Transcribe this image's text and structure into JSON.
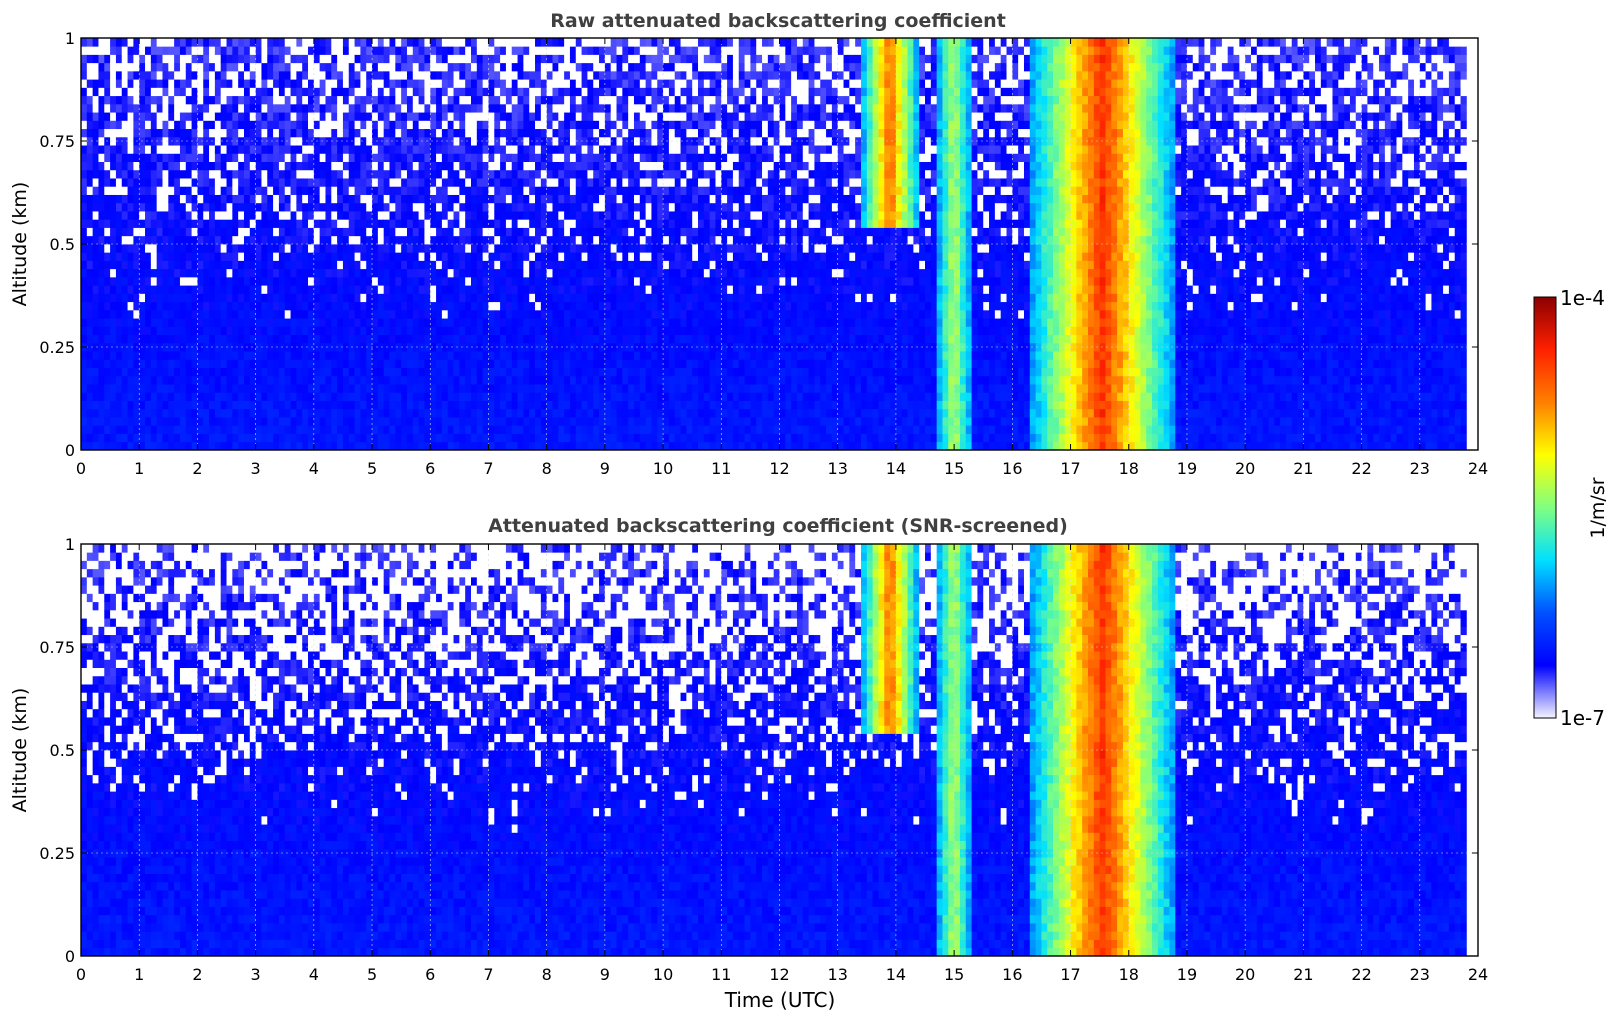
{
  "chart_data": [
    {
      "type": "heatmap",
      "title": "Raw attenuated backscattering coefficient",
      "xlabel": "",
      "ylabel": "Altitude (km)",
      "xlim": [
        0,
        24
      ],
      "ylim": [
        0,
        1
      ],
      "xticks": [
        "0",
        "1",
        "2",
        "3",
        "4",
        "5",
        "6",
        "7",
        "8",
        "9",
        "10",
        "11",
        "12",
        "13",
        "14",
        "15",
        "16",
        "17",
        "18",
        "19",
        "20",
        "21",
        "22",
        "23",
        "24"
      ],
      "yticks": [
        "0",
        "0.25",
        "0.5",
        "0.75",
        "1"
      ],
      "grid": true,
      "screened": false,
      "cloud_features": [
        {
          "time_start": 13.4,
          "time_end": 14.4,
          "altitude_base_km": 0.55,
          "altitude_top_km": 1.0,
          "intensity": "high"
        },
        {
          "time_start": 14.7,
          "time_end": 15.3,
          "altitude_base_km": 0.0,
          "altitude_top_km": 1.0,
          "intensity": "medium"
        },
        {
          "time_start": 16.3,
          "time_end": 18.8,
          "altitude_base_km": 0.0,
          "altitude_top_km": 1.0,
          "intensity": "very high"
        }
      ]
    },
    {
      "type": "heatmap",
      "title": "Attenuated backscattering coefficient (SNR-screened)",
      "xlabel": "Time (UTC)",
      "ylabel": "Altitude (km)",
      "xlim": [
        0,
        24
      ],
      "ylim": [
        0,
        1
      ],
      "xticks": [
        "0",
        "1",
        "2",
        "3",
        "4",
        "5",
        "6",
        "7",
        "8",
        "9",
        "10",
        "11",
        "12",
        "13",
        "14",
        "15",
        "16",
        "17",
        "18",
        "19",
        "20",
        "21",
        "22",
        "23",
        "24"
      ],
      "yticks": [
        "0",
        "0.25",
        "0.5",
        "0.75",
        "1"
      ],
      "grid": true,
      "screened": true,
      "cloud_features": [
        {
          "time_start": 13.4,
          "time_end": 14.4,
          "altitude_base_km": 0.55,
          "altitude_top_km": 1.0,
          "intensity": "high"
        },
        {
          "time_start": 14.7,
          "time_end": 15.3,
          "altitude_base_km": 0.0,
          "altitude_top_km": 1.0,
          "intensity": "medium"
        },
        {
          "time_start": 16.3,
          "time_end": 18.8,
          "altitude_base_km": 0.0,
          "altitude_top_km": 1.0,
          "intensity": "very high"
        }
      ]
    }
  ],
  "colorbar": {
    "max_label": "1e-4",
    "min_label": "1e-7",
    "unit_label": "1/m/sr",
    "colormap": [
      "#f4f4ff",
      "#0000ff",
      "#0050ff",
      "#00e0ff",
      "#80ff80",
      "#ffff00",
      "#ff8000",
      "#ff2000",
      "#8b0000"
    ]
  },
  "colors": {
    "title": "#404040",
    "axis": "#000000",
    "grid": "#d8d8d8",
    "clear_air": "#1a3cf0"
  }
}
